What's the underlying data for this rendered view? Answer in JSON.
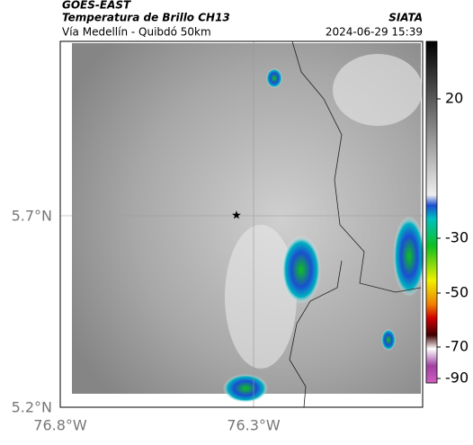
{
  "header": {
    "satellite": "GOES-EAST",
    "product": "Temperatura de Brillo CH13",
    "region": "Vía Medellín - Quibdó 50km",
    "source": "SIATA",
    "timestamp": "2024-06-29 15:39"
  },
  "map": {
    "lat_ticks": [
      "5.7°N",
      "5.2°N"
    ],
    "lon_ticks": [
      "76.8°W",
      "76.3°W"
    ]
  },
  "colorbar": {
    "ticks": [
      20,
      -30,
      -50,
      -70,
      -90
    ]
  }
}
